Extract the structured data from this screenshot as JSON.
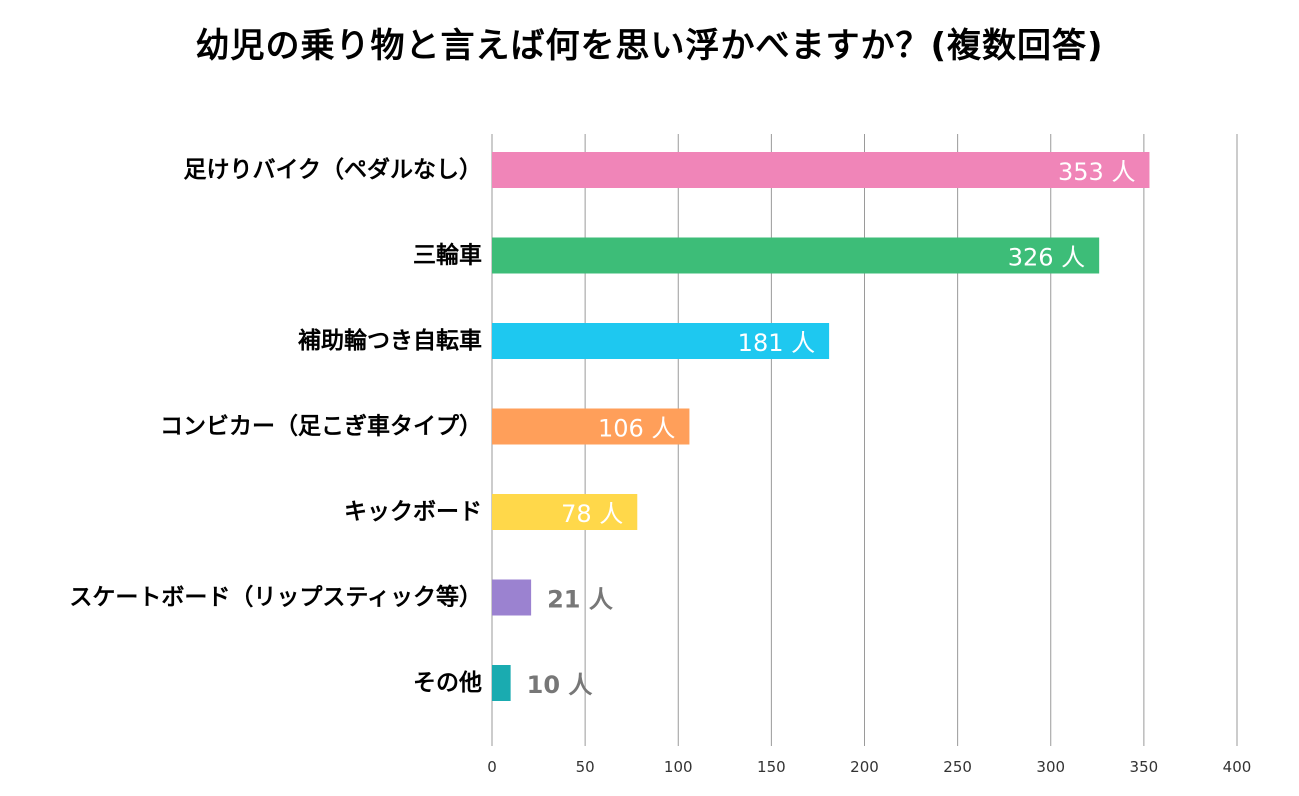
{
  "chart_data": {
    "type": "bar",
    "orientation": "horizontal",
    "title": "幼児の乗り物と言えば何を思い浮かべますか？(複数回答)",
    "xlabel": "",
    "ylabel": "",
    "xlim": [
      0,
      400
    ],
    "xticks": [
      0,
      50,
      100,
      150,
      200,
      250,
      300,
      350,
      400
    ],
    "grid": true,
    "categories": [
      "足けりバイク（ペダルなし）",
      "三輪車",
      "補助輪つき自転車",
      "コンビカー（足こぎ車タイプ）",
      "キックボード",
      "スケートボード（リップスティック等）",
      "その他"
    ],
    "values": [
      353,
      326,
      181,
      106,
      78,
      21,
      10
    ],
    "value_labels": [
      "353 人",
      "326 人",
      "181 人",
      "106 人",
      "78 人",
      "21 人",
      "10 人"
    ],
    "colors": [
      "#f085b8",
      "#3dbd78",
      "#1ec8f0",
      "#ff9f5a",
      "#ffd84a",
      "#9b82d0",
      "#1aabb0"
    ]
  },
  "colors": {
    "grid": "#9a9a9a",
    "axis_text": "#333333",
    "label_inside": "#ffffff",
    "label_outside": "#777777"
  }
}
